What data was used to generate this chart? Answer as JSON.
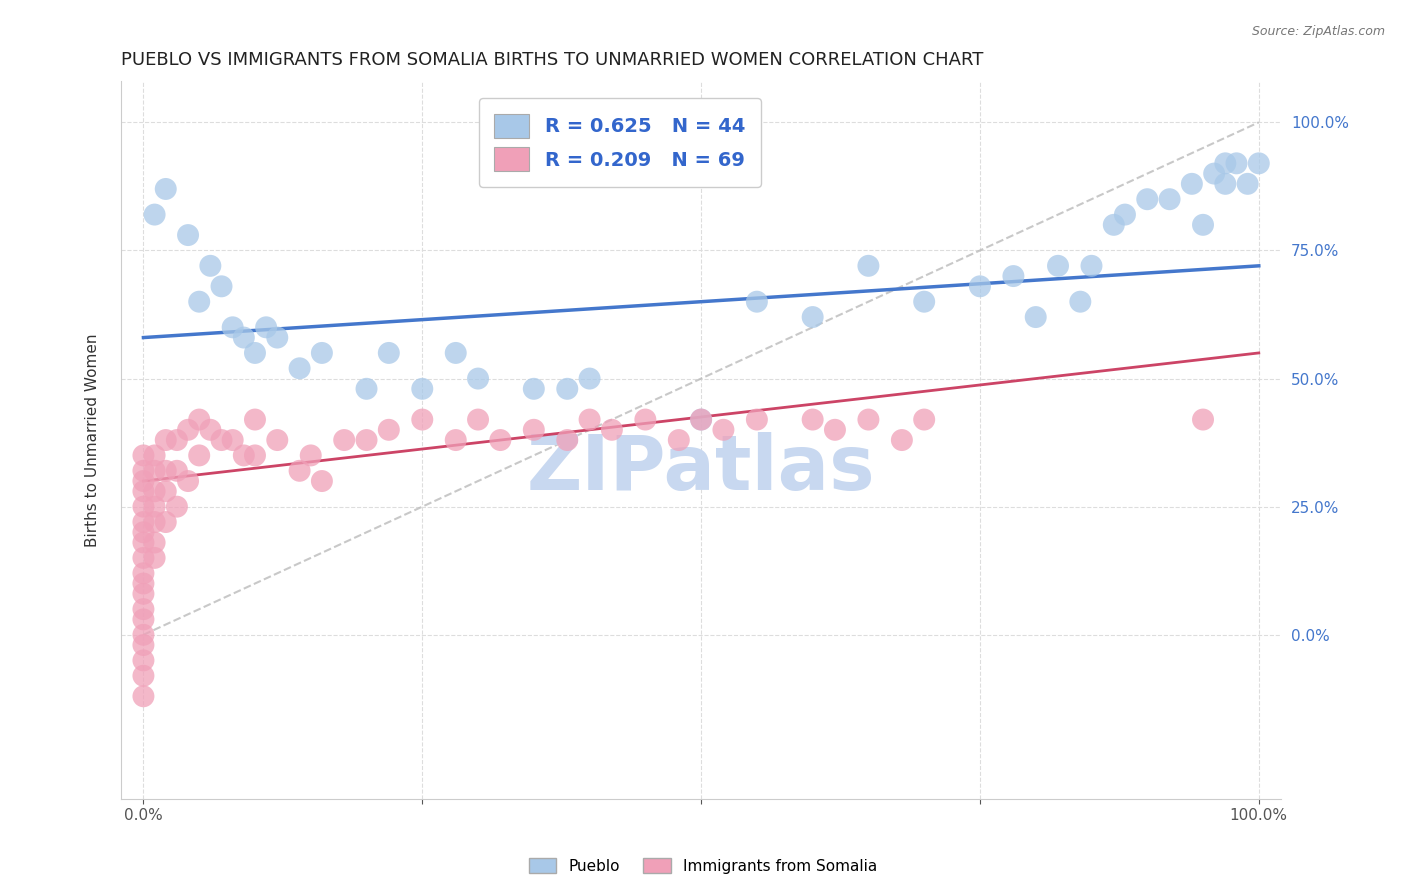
{
  "title": "PUEBLO VS IMMIGRANTS FROM SOMALIA BIRTHS TO UNMARRIED WOMEN CORRELATION CHART",
  "source": "Source: ZipAtlas.com",
  "ylabel": "Births to Unmarried Women",
  "watermark": "ZIPatlas",
  "xlim": [
    -0.02,
    1.02
  ],
  "ylim": [
    -0.32,
    1.08
  ],
  "xticks": [
    0.0,
    0.25,
    0.5,
    0.75,
    1.0
  ],
  "yticks": [
    0.0,
    0.25,
    0.5,
    0.75,
    1.0
  ],
  "xticklabels": [
    "0.0%",
    "",
    "",
    "",
    "100.0%"
  ],
  "yticklabels": [
    "0.0%",
    "25.0%",
    "50.0%",
    "75.0%",
    "100.0%"
  ],
  "pueblo_color": "#A8C8E8",
  "somalia_color": "#F0A0B8",
  "blue_line_color": "#4477CC",
  "pink_line_color": "#CC4466",
  "ref_line_color": "#BBBBBB",
  "legend_R_blue": "R = 0.625",
  "legend_N_blue": "N = 44",
  "legend_R_pink": "R = 0.209",
  "legend_N_pink": "N = 69",
  "legend_label_blue": "Pueblo",
  "legend_label_pink": "Immigrants from Somalia",
  "pueblo_x": [
    0.01,
    0.02,
    0.04,
    0.05,
    0.06,
    0.07,
    0.08,
    0.09,
    0.1,
    0.11,
    0.12,
    0.14,
    0.16,
    0.2,
    0.22,
    0.25,
    0.28,
    0.3,
    0.35,
    0.38,
    0.4,
    0.5,
    0.55,
    0.6,
    0.65,
    0.7,
    0.75,
    0.78,
    0.8,
    0.82,
    0.84,
    0.85,
    0.87,
    0.88,
    0.9,
    0.92,
    0.94,
    0.95,
    0.96,
    0.97,
    0.97,
    0.98,
    0.99,
    1.0
  ],
  "pueblo_y": [
    0.82,
    0.87,
    0.78,
    0.65,
    0.72,
    0.68,
    0.6,
    0.58,
    0.55,
    0.6,
    0.58,
    0.52,
    0.55,
    0.48,
    0.55,
    0.48,
    0.55,
    0.5,
    0.48,
    0.48,
    0.5,
    0.42,
    0.65,
    0.62,
    0.72,
    0.65,
    0.68,
    0.7,
    0.62,
    0.72,
    0.65,
    0.72,
    0.8,
    0.82,
    0.85,
    0.85,
    0.88,
    0.8,
    0.9,
    0.88,
    0.92,
    0.92,
    0.88,
    0.92
  ],
  "somalia_x": [
    0.0,
    0.0,
    0.0,
    0.0,
    0.0,
    0.0,
    0.0,
    0.0,
    0.0,
    0.0,
    0.0,
    0.0,
    0.0,
    0.0,
    0.0,
    0.0,
    0.0,
    0.0,
    0.0,
    0.01,
    0.01,
    0.01,
    0.01,
    0.01,
    0.01,
    0.01,
    0.02,
    0.02,
    0.02,
    0.02,
    0.03,
    0.03,
    0.03,
    0.04,
    0.04,
    0.05,
    0.05,
    0.06,
    0.07,
    0.08,
    0.09,
    0.1,
    0.1,
    0.12,
    0.14,
    0.15,
    0.16,
    0.18,
    0.2,
    0.22,
    0.25,
    0.28,
    0.3,
    0.32,
    0.35,
    0.38,
    0.4,
    0.42,
    0.45,
    0.48,
    0.5,
    0.52,
    0.55,
    0.6,
    0.62,
    0.65,
    0.68,
    0.7,
    0.95
  ],
  "somalia_y": [
    0.35,
    0.32,
    0.3,
    0.28,
    0.25,
    0.22,
    0.2,
    0.18,
    0.15,
    0.12,
    0.1,
    0.08,
    0.05,
    0.03,
    0.0,
    -0.02,
    -0.05,
    -0.08,
    -0.12,
    0.35,
    0.32,
    0.28,
    0.25,
    0.22,
    0.18,
    0.15,
    0.38,
    0.32,
    0.28,
    0.22,
    0.38,
    0.32,
    0.25,
    0.4,
    0.3,
    0.42,
    0.35,
    0.4,
    0.38,
    0.38,
    0.35,
    0.42,
    0.35,
    0.38,
    0.32,
    0.35,
    0.3,
    0.38,
    0.38,
    0.4,
    0.42,
    0.38,
    0.42,
    0.38,
    0.4,
    0.38,
    0.42,
    0.4,
    0.42,
    0.38,
    0.42,
    0.4,
    0.42,
    0.42,
    0.4,
    0.42,
    0.38,
    0.42,
    0.42
  ],
  "blue_line_x": [
    0.0,
    1.0
  ],
  "blue_line_y": [
    0.58,
    0.72
  ],
  "pink_line_x": [
    0.0,
    1.0
  ],
  "pink_line_y": [
    0.3,
    0.55
  ],
  "ref_line_x": [
    0.0,
    1.0
  ],
  "ref_line_y": [
    0.0,
    1.0
  ],
  "grid_color": "#DDDDDD",
  "title_fontsize": 13,
  "axis_label_fontsize": 11,
  "tick_fontsize": 11,
  "watermark_fontsize": 55,
  "watermark_color": "#C8D8F0",
  "background_color": "#FFFFFF"
}
